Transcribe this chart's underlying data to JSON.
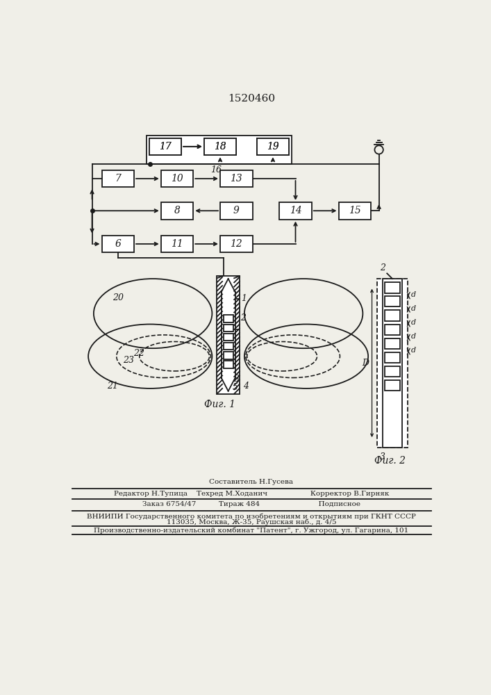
{
  "title": "1520460",
  "bg_color": "#f0efe8",
  "line_color": "#1a1a1a",
  "fig1_caption": "Фиг. 1",
  "fig2_caption": "Фиг. 2",
  "footer_lines": [
    "Составитель Н.Гусева",
    "Редактор Н.Тупица    Техред М.Ходанич                   Корректор В.Гирняк",
    "Заказ 6754/47          Тираж 484                          Подписное",
    "ВНИИПИ Государственного комитета по изобретениям и открытиям при ГКНТ СССР",
    "113035, Москва, Ж-35, Раушская наб., д. 4/5",
    "Производственно-издательский комбинат \"Патент\", г. Ужгород, ул. Гагарина, 101"
  ]
}
